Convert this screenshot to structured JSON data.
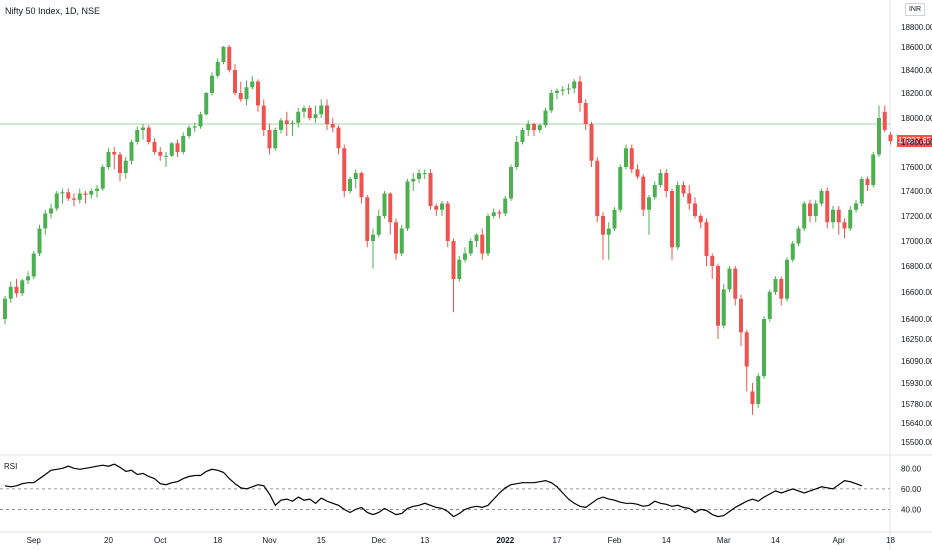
{
  "title": "Nifty 50 Index, 1D, NSE",
  "currency": "INR",
  "last_price_label": "17807.65",
  "rsi_label": "RSI",
  "colors": {
    "up": "#4caf50",
    "down": "#ef5350",
    "hline": "#a5d6a7",
    "rsi": "#000000",
    "price_tag": "#ef5350"
  },
  "chart_data": [
    {
      "type": "candlestick",
      "title": "Nifty 50 Index, 1D, NSE",
      "y_unit": "INR",
      "ylim": [
        15500,
        18850
      ],
      "y_ticks": [
        18800,
        18600,
        18400,
        18200,
        18000,
        17800,
        17600,
        17400,
        17200,
        17000,
        16800,
        16600,
        16400,
        16250,
        16090,
        15930,
        15780,
        15640,
        15500
      ],
      "y_tick_labels": [
        "18800.00",
        "18600.00",
        "18400.00",
        "18200.00",
        "18000.00",
        "17800.00",
        "17600.00",
        "17400.00",
        "17200.00",
        "17000.00",
        "16800.00",
        "16600.00",
        "16400.00",
        "16250.00",
        "16090.00",
        "15930.00",
        "15780.00",
        "15640.00",
        "15500.00"
      ],
      "x_labels": [
        "Sep",
        "20",
        "Oct",
        "18",
        "Nov",
        "15",
        "Dec",
        "13",
        "2022",
        "17",
        "Feb",
        "14",
        "Mar",
        "14",
        "Apr",
        "18"
      ],
      "x_label_index": [
        5,
        18,
        27,
        37,
        46,
        55,
        65,
        73,
        87,
        96,
        106,
        115,
        125,
        134,
        145,
        154
      ],
      "horizontal_line": 17950,
      "last_price": 17807.65,
      "candles": [
        [
          16400,
          16550,
          16360,
          16570
        ],
        [
          16550,
          16640,
          16520,
          16680
        ],
        [
          16640,
          16590,
          16560,
          16700
        ],
        [
          16590,
          16690,
          16570,
          16700
        ],
        [
          16690,
          16720,
          16660,
          16760
        ],
        [
          16720,
          16900,
          16700,
          16920
        ],
        [
          16900,
          17100,
          16880,
          17130
        ],
        [
          17100,
          17220,
          17050,
          17250
        ],
        [
          17220,
          17260,
          17180,
          17300
        ],
        [
          17260,
          17380,
          17240,
          17400
        ],
        [
          17380,
          17390,
          17300,
          17420
        ],
        [
          17390,
          17340,
          17320,
          17420
        ],
        [
          17340,
          17330,
          17280,
          17380
        ],
        [
          17330,
          17380,
          17300,
          17420
        ],
        [
          17380,
          17370,
          17300,
          17400
        ],
        [
          17370,
          17400,
          17340,
          17420
        ],
        [
          17400,
          17420,
          17350,
          17450
        ],
        [
          17420,
          17600,
          17400,
          17620
        ],
        [
          17600,
          17720,
          17580,
          17750
        ],
        [
          17720,
          17700,
          17580,
          17760
        ],
        [
          17700,
          17550,
          17480,
          17720
        ],
        [
          17550,
          17650,
          17500,
          17680
        ],
        [
          17650,
          17800,
          17620,
          17820
        ],
        [
          17800,
          17900,
          17780,
          17930
        ],
        [
          17900,
          17920,
          17820,
          17950
        ],
        [
          17920,
          17800,
          17780,
          17940
        ],
        [
          17800,
          17720,
          17700,
          17830
        ],
        [
          17720,
          17690,
          17650,
          17760
        ],
        [
          17690,
          17690,
          17600,
          17720
        ],
        [
          17690,
          17790,
          17680,
          17800
        ],
        [
          17790,
          17720,
          17680,
          17820
        ],
        [
          17720,
          17850,
          17700,
          17880
        ],
        [
          17850,
          17920,
          17830,
          17940
        ],
        [
          17920,
          17930,
          17880,
          17960
        ],
        [
          17930,
          18030,
          17910,
          18050
        ],
        [
          18030,
          18200,
          18020,
          18210
        ],
        [
          18200,
          18350,
          18180,
          18380
        ],
        [
          18350,
          18470,
          18330,
          18500
        ],
        [
          18470,
          18600,
          18450,
          18610
        ],
        [
          18600,
          18400,
          18380,
          18620
        ],
        [
          18400,
          18200,
          18180,
          18450
        ],
        [
          18200,
          18150,
          18130,
          18300
        ],
        [
          18150,
          18250,
          18100,
          18310
        ],
        [
          18250,
          18300,
          18230,
          18350
        ],
        [
          18300,
          18100,
          18050,
          18320
        ],
        [
          18100,
          17900,
          17850,
          18150
        ],
        [
          17900,
          17750,
          17700,
          17950
        ],
        [
          17750,
          17900,
          17730,
          17920
        ],
        [
          17900,
          17980,
          17870,
          18000
        ],
        [
          17980,
          17950,
          17850,
          18050
        ],
        [
          17950,
          17960,
          17850,
          17980
        ],
        [
          17960,
          18050,
          17920,
          18080
        ],
        [
          18050,
          18080,
          18000,
          18100
        ],
        [
          18080,
          18000,
          17980,
          18100
        ],
        [
          18000,
          18030,
          17960,
          18100
        ],
        [
          18030,
          18100,
          18000,
          18150
        ],
        [
          18100,
          17950,
          17900,
          18150
        ],
        [
          17950,
          17920,
          17880,
          18000
        ],
        [
          17920,
          17750,
          17700,
          17940
        ],
        [
          17750,
          17400,
          17350,
          17780
        ],
        [
          17400,
          17500,
          17380,
          17520
        ],
        [
          17500,
          17550,
          17420,
          17580
        ],
        [
          17550,
          17350,
          17300,
          17560
        ],
        [
          17350,
          17000,
          16950,
          17370
        ],
        [
          17000,
          17050,
          16780,
          17100
        ],
        [
          17050,
          17200,
          17030,
          17250
        ],
        [
          17200,
          17380,
          17180,
          17400
        ],
        [
          17380,
          17150,
          17050,
          17390
        ],
        [
          17150,
          16900,
          16850,
          17180
        ],
        [
          16900,
          17100,
          16880,
          17130
        ],
        [
          17100,
          17480,
          17080,
          17500
        ],
        [
          17480,
          17500,
          17400,
          17550
        ],
        [
          17500,
          17550,
          17470,
          17580
        ],
        [
          17550,
          17550,
          17500,
          17580
        ],
        [
          17550,
          17280,
          17250,
          17580
        ],
        [
          17280,
          17250,
          17200,
          17300
        ],
        [
          17250,
          17300,
          17200,
          17320
        ],
        [
          17300,
          17000,
          16950,
          17320
        ],
        [
          17000,
          16700,
          16450,
          17020
        ],
        [
          16700,
          16850,
          16680,
          16880
        ],
        [
          16850,
          16900,
          16830,
          16950
        ],
        [
          16900,
          17000,
          16880,
          17020
        ],
        [
          17000,
          17050,
          16950,
          17060
        ],
        [
          17050,
          16900,
          16850,
          17100
        ],
        [
          16900,
          17200,
          16880,
          17220
        ],
        [
          17200,
          17230,
          17180,
          17260
        ],
        [
          17230,
          17220,
          17180,
          17250
        ],
        [
          17220,
          17340,
          17200,
          17360
        ],
        [
          17340,
          17600,
          17320,
          17620
        ],
        [
          17600,
          17800,
          17580,
          17850
        ],
        [
          17800,
          17900,
          17780,
          17920
        ],
        [
          17900,
          17950,
          17850,
          17980
        ],
        [
          17950,
          17900,
          17850,
          17960
        ],
        [
          17900,
          17940,
          17880,
          17950
        ],
        [
          17940,
          18060,
          17920,
          18080
        ],
        [
          18060,
          18200,
          18040,
          18230
        ],
        [
          18200,
          18220,
          18150,
          18240
        ],
        [
          18220,
          18230,
          18180,
          18260
        ],
        [
          18230,
          18240,
          18190,
          18280
        ],
        [
          18240,
          18300,
          18200,
          18320
        ],
        [
          18300,
          18120,
          18050,
          18350
        ],
        [
          18120,
          17950,
          17900,
          18150
        ],
        [
          17950,
          17650,
          17600,
          17970
        ],
        [
          17650,
          17200,
          17150,
          17680
        ],
        [
          17200,
          17050,
          16850,
          17230
        ],
        [
          17050,
          17100,
          16850,
          17150
        ],
        [
          17100,
          17250,
          17080,
          17270
        ],
        [
          17250,
          17600,
          17230,
          17620
        ],
        [
          17600,
          17750,
          17580,
          17780
        ],
        [
          17750,
          17580,
          17550,
          17780
        ],
        [
          17580,
          17520,
          17500,
          17620
        ],
        [
          17520,
          17250,
          17200,
          17540
        ],
        [
          17250,
          17350,
          17050,
          17370
        ],
        [
          17350,
          17450,
          17330,
          17480
        ],
        [
          17450,
          17550,
          17430,
          17580
        ],
        [
          17550,
          17400,
          17350,
          17580
        ],
        [
          17400,
          16950,
          16850,
          17420
        ],
        [
          16950,
          17450,
          16930,
          17480
        ],
        [
          17450,
          17380,
          17350,
          17480
        ],
        [
          17380,
          17300,
          17250,
          17450
        ],
        [
          17300,
          17200,
          17180,
          17350
        ],
        [
          17200,
          17150,
          17100,
          17220
        ],
        [
          17150,
          16880,
          16800,
          17180
        ],
        [
          16880,
          16800,
          16700,
          16900
        ],
        [
          16800,
          16350,
          16250,
          16820
        ],
        [
          16350,
          16620,
          16330,
          16660
        ],
        [
          16620,
          16780,
          16600,
          16800
        ],
        [
          16780,
          16550,
          16500,
          16800
        ],
        [
          16550,
          16300,
          16200,
          16580
        ],
        [
          16300,
          16050,
          15870,
          16320
        ],
        [
          15870,
          15780,
          15700,
          15930
        ],
        [
          15780,
          15980,
          15750,
          16000
        ],
        [
          15980,
          16400,
          15960,
          16420
        ],
        [
          16400,
          16600,
          16380,
          16620
        ],
        [
          16600,
          16700,
          16580,
          16720
        ],
        [
          16700,
          16550,
          16500,
          16720
        ],
        [
          16550,
          16850,
          16530,
          16870
        ],
        [
          16850,
          16980,
          16830,
          17000
        ],
        [
          16980,
          17100,
          16960,
          17120
        ],
        [
          17100,
          17300,
          17080,
          17320
        ],
        [
          17300,
          17200,
          17150,
          17330
        ],
        [
          17200,
          17300,
          17150,
          17330
        ],
        [
          17300,
          17400,
          17280,
          17420
        ],
        [
          17400,
          17150,
          17100,
          17430
        ],
        [
          17150,
          17250,
          17100,
          17280
        ],
        [
          17250,
          17150,
          17050,
          17280
        ],
        [
          17150,
          17100,
          17020,
          17180
        ],
        [
          17100,
          17250,
          17080,
          17280
        ],
        [
          17250,
          17300,
          17230,
          17330
        ],
        [
          17300,
          17500,
          17280,
          17520
        ],
        [
          17500,
          17450,
          17400,
          17520
        ],
        [
          17450,
          17700,
          17430,
          17720
        ],
        [
          17700,
          18000,
          17680,
          18100
        ],
        [
          18050,
          17900,
          17880,
          18100
        ],
        [
          17860,
          17808,
          17780,
          17880
        ]
      ]
    },
    {
      "type": "line",
      "title": "RSI",
      "ylim": [
        20,
        90
      ],
      "y_ticks": [
        80,
        60,
        40
      ],
      "y_tick_labels": [
        "80.00",
        "60.00",
        "40.00"
      ],
      "dashed_levels": [
        60,
        40
      ],
      "values": [
        63,
        62,
        63,
        65,
        66,
        66,
        70,
        74,
        78,
        79,
        80,
        82,
        80,
        79,
        80,
        81,
        82,
        83,
        82,
        84,
        81,
        77,
        78,
        74,
        75,
        72,
        70,
        65,
        64,
        66,
        67,
        70,
        72,
        73,
        73,
        77,
        79,
        78,
        76,
        70,
        65,
        61,
        60,
        62,
        64,
        63,
        55,
        44,
        49,
        50,
        48,
        52,
        49,
        50,
        46,
        51,
        48,
        46,
        44,
        40,
        37,
        40,
        42,
        37,
        35,
        37,
        41,
        38,
        35,
        36,
        41,
        43,
        44,
        46,
        44,
        42,
        41,
        38,
        33,
        36,
        40,
        42,
        43,
        42,
        44,
        50,
        56,
        61,
        64,
        65,
        66,
        66,
        66,
        67,
        68,
        66,
        62,
        56,
        50,
        46,
        43,
        42,
        46,
        50,
        52,
        50,
        49,
        47,
        46,
        46,
        45,
        43,
        44,
        48,
        46,
        45,
        43,
        44,
        42,
        41,
        37,
        40,
        39,
        35,
        33,
        34,
        38,
        42,
        45,
        48,
        50,
        48,
        52,
        55,
        58,
        56,
        58,
        60,
        58,
        56,
        58,
        60,
        62,
        61,
        60,
        64,
        68,
        67,
        65,
        63
      ]
    }
  ]
}
